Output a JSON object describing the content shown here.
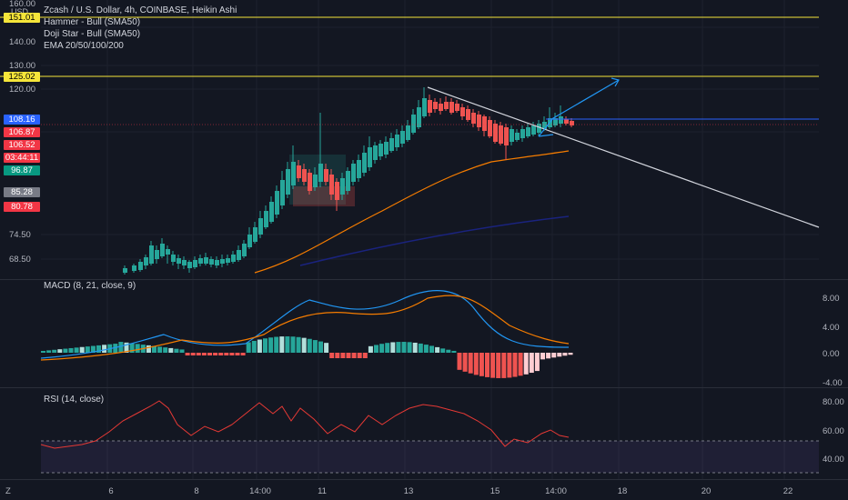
{
  "legend": {
    "title": "Zcash / U.S. Dollar, 4h, COINBASE, Heikin Ashi",
    "hammer": "Hammer - Bull (SMA50)",
    "doji": "Doji Star - Bull (SMA50)",
    "ema": "EMA 20/50/100/200"
  },
  "macd": {
    "label": "MACD (8, 21, close, 9)",
    "ticks": [
      "8.00",
      "4.00",
      "0.00",
      "-4.00"
    ]
  },
  "rsi": {
    "label": "RSI (14, close)",
    "ticks": [
      "80.00",
      "60.00",
      "40.00"
    ]
  },
  "price_axis": {
    "currency": "USD",
    "ticks": [
      "160.00",
      "140.00",
      "130.00",
      "120.00",
      "74.50",
      "68.50"
    ],
    "labels": [
      {
        "text": "151.01",
        "bg": "#f5e53a",
        "fg": "#000000"
      },
      {
        "text": "125.02",
        "bg": "#f5e53a",
        "fg": "#000000"
      },
      {
        "text": "108.16",
        "bg": "#2962ff",
        "fg": "#ffffff"
      },
      {
        "text": "106.87",
        "bg": "#f23645",
        "fg": "#ffffff"
      },
      {
        "text": "106.52",
        "bg": "#f23645",
        "fg": "#ffffff"
      },
      {
        "text": "03:44:11",
        "bg": "#f23645",
        "fg": "#ffffff"
      },
      {
        "text": "96.87",
        "bg": "#089981",
        "fg": "#ffffff"
      },
      {
        "text": "85.28",
        "bg": "#787b86",
        "fg": "#ffffff"
      },
      {
        "text": "80.78",
        "bg": "#f23645",
        "fg": "#ffffff"
      }
    ]
  },
  "time_axis": {
    "ticks": [
      "6",
      "8",
      "14:00",
      "11",
      "13",
      "15",
      "14:00",
      "18",
      "20",
      "22"
    ]
  },
  "bottom_icon": "Z",
  "colors": {
    "up": "#26a69a",
    "down": "#ef5350",
    "bg": "#131722",
    "grid": "#1e222d",
    "yellow": "#f5e53a",
    "blue": "#2962ff",
    "orange": "#f57c00",
    "macd_line": "#2196f3"
  }
}
